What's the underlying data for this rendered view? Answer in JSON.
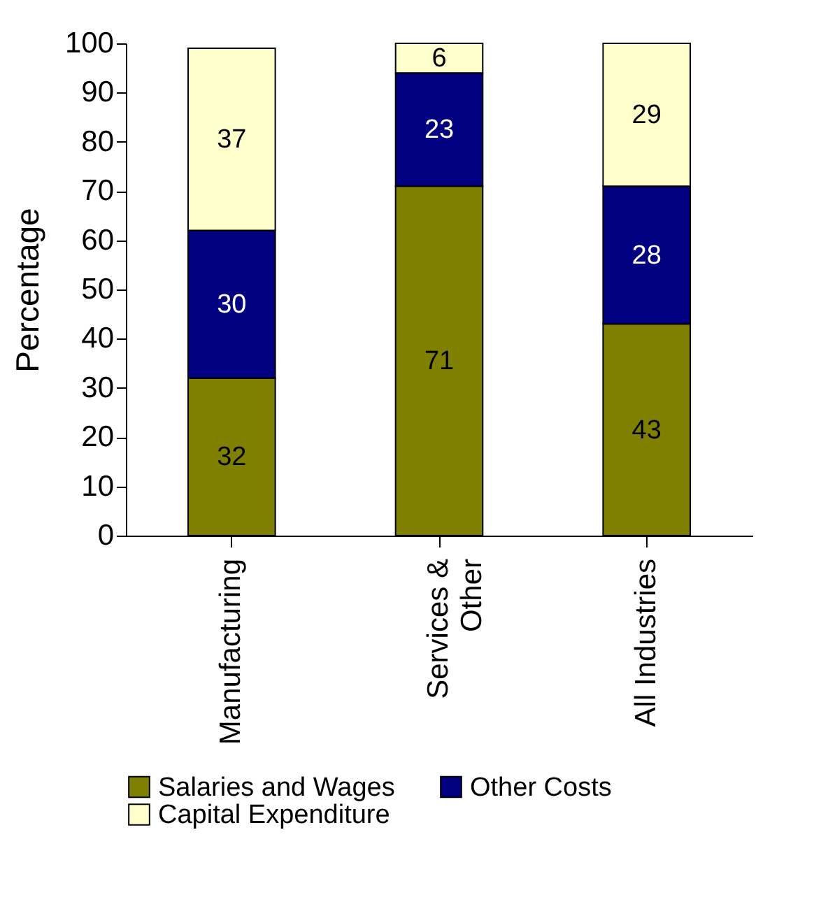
{
  "chart_data": {
    "type": "bar",
    "stacked": true,
    "ylabel": "Percentage",
    "categories": [
      "Manufacturing",
      "Services & Other",
      "All Industries"
    ],
    "series": [
      {
        "name": "Salaries and Wages",
        "color": "#808000",
        "values": [
          32,
          71,
          43
        ]
      },
      {
        "name": "Other Costs",
        "color": "#000080",
        "values": [
          30,
          23,
          28
        ]
      },
      {
        "name": "Capital Expenditure",
        "color": "#ffffcc",
        "values": [
          37,
          6,
          29
        ]
      }
    ],
    "ylim": [
      0,
      100
    ],
    "yticks": [
      0,
      10,
      20,
      30,
      40,
      50,
      60,
      70,
      80,
      90,
      100
    ],
    "grid": false,
    "legend": "bottom",
    "data_labels": true
  }
}
